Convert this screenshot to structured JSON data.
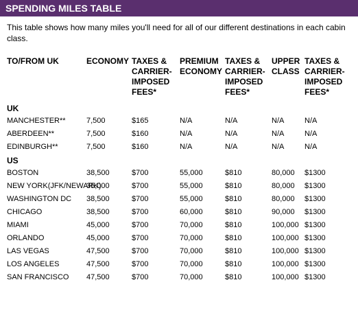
{
  "title": "SPENDING MILES TABLE",
  "intro": "This table shows how many miles you'll need for all of our different destinations in each cabin class.",
  "headers": [
    "TO/FROM UK",
    "ECONOMY",
    "TAXES & CARRIER-IMPOSED FEES*",
    "PREMIUM ECONOMY",
    "TAXES & CARRIER-IMPOSED FEES*",
    "UPPER CLASS",
    "TAXES & CARRIER-IMPOSED FEES*"
  ],
  "sections": [
    {
      "name": "UK",
      "rows": [
        [
          "MANCHESTER**",
          "7,500",
          "$165",
          "N/A",
          "N/A",
          "N/A",
          "N/A"
        ],
        [
          "ABERDEEN**",
          "7,500",
          "$160",
          "N/A",
          "N/A",
          "N/A",
          "N/A"
        ],
        [
          "EDINBURGH**",
          "7,500",
          "$160",
          "N/A",
          "N/A",
          "N/A",
          "N/A"
        ]
      ]
    },
    {
      "name": "US",
      "rows": [
        [
          "BOSTON",
          "38,500",
          "$700",
          "55,000",
          "$810",
          "80,000",
          "$1300"
        ],
        [
          "NEW YORK(JFK/NEWARK)",
          "35,000",
          "$700",
          "55,000",
          "$810",
          "80,000",
          "$1300"
        ],
        [
          "WASHINGTON DC",
          "38,500",
          "$700",
          "55,000",
          "$810",
          "80,000",
          "$1300"
        ],
        [
          "CHICAGO",
          "38,500",
          "$700",
          "60,000",
          "$810",
          "90,000",
          "$1300"
        ],
        [
          "MIAMI",
          "45,000",
          "$700",
          "70,000",
          "$810",
          "100,000",
          "$1300"
        ],
        [
          "ORLANDO",
          "45,000",
          "$700",
          "70,000",
          "$810",
          "100,000",
          "$1300"
        ],
        [
          "LAS VEGAS",
          "47,500",
          "$700",
          "70,000",
          "$810",
          "100,000",
          "$1300"
        ],
        [
          "LOS ANGELES",
          "47,500",
          "$700",
          "70,000",
          "$810",
          "100,000",
          "$1300"
        ],
        [
          "SAN FRANCISCO",
          "47,500",
          "$700",
          "70,000",
          "$810",
          "100,000",
          "$1300"
        ]
      ]
    }
  ]
}
